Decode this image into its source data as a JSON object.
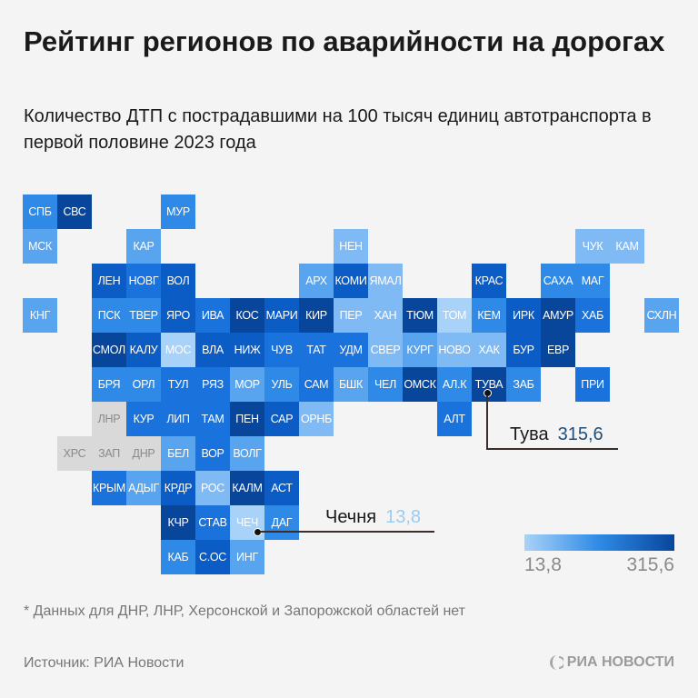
{
  "title": "Рейтинг регионов по аварийности на дорогах",
  "subtitle": "Количество ДТП с пострадавшими на 100 тысяч единиц автотранспорта в первой половине 2023 года",
  "colors": {
    "levels": [
      "#a9d2f8",
      "#7fbaf4",
      "#58a4ef",
      "#2e8ae6",
      "#1a72dc",
      "#0b5cc4",
      "#08469c"
    ],
    "nodata": "#d9d9d9",
    "highlight_max": "#1f4e79",
    "highlight_min": "#9ccbf0"
  },
  "regions": [
    {
      "label": "СПБ",
      "level": 4
    },
    {
      "label": "СВС",
      "level": 7
    },
    {
      "label": "МУР",
      "level": 4
    },
    {
      "label": "МСК",
      "level": 3
    },
    {
      "label": "КАР",
      "level": 3
    },
    {
      "label": "НЕН",
      "level": 2
    },
    {
      "label": "ЧУК",
      "level": 2
    },
    {
      "label": "КАМ",
      "level": 2
    },
    {
      "label": "ЛЕН",
      "level": 6
    },
    {
      "label": "НОВГ",
      "level": 5
    },
    {
      "label": "ВОЛ",
      "level": 6
    },
    {
      "label": "АРХ",
      "level": 3
    },
    {
      "label": "КОМИ",
      "level": 6
    },
    {
      "label": "ЯМАЛ",
      "level": 2
    },
    {
      "label": "КРАС",
      "level": 6
    },
    {
      "label": "САХА",
      "level": 4
    },
    {
      "label": "МАГ",
      "level": 4
    },
    {
      "label": "КНГ",
      "level": 3
    },
    {
      "label": "ПСК",
      "level": 4
    },
    {
      "label": "ТВЕР",
      "level": 4
    },
    {
      "label": "ЯРО",
      "level": 6
    },
    {
      "label": "ИВА",
      "level": 5
    },
    {
      "label": "КОС",
      "level": 7
    },
    {
      "label": "МАРИ",
      "level": 6
    },
    {
      "label": "КИР",
      "level": 7
    },
    {
      "label": "ПЕР",
      "level": 2
    },
    {
      "label": "ХАН",
      "level": 2
    },
    {
      "label": "ТЮМ",
      "level": 7
    },
    {
      "label": "ТОМ",
      "level": 1
    },
    {
      "label": "КЕМ",
      "level": 4
    },
    {
      "label": "ИРК",
      "level": 6
    },
    {
      "label": "АМУР",
      "level": 7
    },
    {
      "label": "ХАБ",
      "level": 5
    },
    {
      "label": "СХЛН",
      "level": 3
    },
    {
      "label": "СМОЛ",
      "level": 7
    },
    {
      "label": "КАЛУ",
      "level": 6
    },
    {
      "label": "МОС",
      "level": 1
    },
    {
      "label": "ВЛА",
      "level": 6
    },
    {
      "label": "НИЖ",
      "level": 6
    },
    {
      "label": "ЧУВ",
      "level": 5
    },
    {
      "label": "ТАТ",
      "level": 5
    },
    {
      "label": "УДМ",
      "level": 5
    },
    {
      "label": "СВЕР",
      "level": 2
    },
    {
      "label": "КУРГ",
      "level": 3
    },
    {
      "label": "НОВО",
      "level": 2
    },
    {
      "label": "ХАК",
      "level": 2
    },
    {
      "label": "БУР",
      "level": 6
    },
    {
      "label": "ЕВР",
      "level": 7
    },
    {
      "label": "БРЯ",
      "level": 4
    },
    {
      "label": "ОРЛ",
      "level": 4
    },
    {
      "label": "ТУЛ",
      "level": 5
    },
    {
      "label": "РЯЗ",
      "level": 5
    },
    {
      "label": "МОР",
      "level": 3
    },
    {
      "label": "УЛЬ",
      "level": 4
    },
    {
      "label": "САМ",
      "level": 5
    },
    {
      "label": "БШК",
      "level": 3
    },
    {
      "label": "ЧЕЛ",
      "level": 4
    },
    {
      "label": "ОМСК",
      "level": 7
    },
    {
      "label": "АЛ.К",
      "level": 4
    },
    {
      "label": "ТУВА",
      "level": 7
    },
    {
      "label": "ЗАБ",
      "level": 4
    },
    {
      "label": "ПРИ",
      "level": 5
    },
    {
      "label": "ЛНР",
      "level": 0
    },
    {
      "label": "КУР",
      "level": 5
    },
    {
      "label": "ЛИП",
      "level": 5
    },
    {
      "label": "ТАМ",
      "level": 5
    },
    {
      "label": "ПЕН",
      "level": 7
    },
    {
      "label": "САР",
      "level": 6
    },
    {
      "label": "ОРНБ",
      "level": 2
    },
    {
      "label": "АЛТ",
      "level": 5
    },
    {
      "label": "ХРС",
      "level": 0
    },
    {
      "label": "ЗАП",
      "level": 0
    },
    {
      "label": "ДНР",
      "level": 0
    },
    {
      "label": "БЕЛ",
      "level": 3
    },
    {
      "label": "ВОР",
      "level": 5
    },
    {
      "label": "ВОЛГ",
      "level": 3
    },
    {
      "label": "КРЫМ",
      "level": 5
    },
    {
      "label": "АДЫГ",
      "level": 3
    },
    {
      "label": "КРДР",
      "level": 6
    },
    {
      "label": "РОС",
      "level": 2
    },
    {
      "label": "КАЛМ",
      "level": 7
    },
    {
      "label": "АСТ",
      "level": 6
    },
    {
      "label": "КЧР",
      "level": 7
    },
    {
      "label": "СТАВ",
      "level": 5
    },
    {
      "label": "ЧЕЧ",
      "level": 1
    },
    {
      "label": "ДАГ",
      "level": 4
    },
    {
      "label": "КАБ",
      "level": 4
    },
    {
      "label": "С.ОС",
      "level": 6
    },
    {
      "label": "ИНГ",
      "level": 3
    }
  ],
  "callouts": {
    "max": {
      "name": "Тува",
      "value": "315,6"
    },
    "min": {
      "name": "Чечня",
      "value": "13,8"
    }
  },
  "legend": {
    "min": "13,8",
    "max": "315,6"
  },
  "footnote": "* Данных для ДНР, ЛНР, Херсонской и Запорожской областей нет",
  "source": "Источник: РИА Новости",
  "logo": "РИА НОВОСТИ"
}
